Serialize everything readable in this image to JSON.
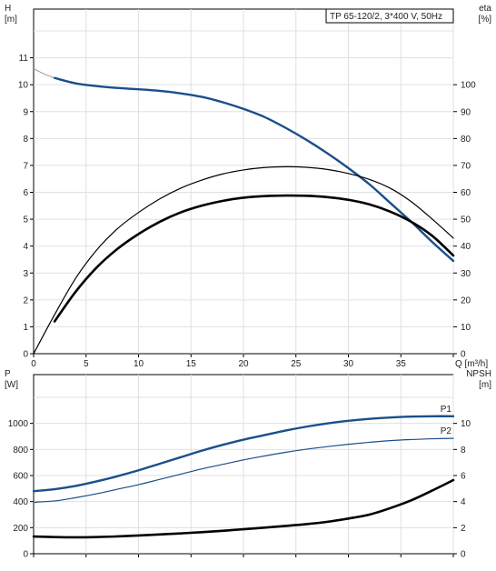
{
  "title_box": "TP 65-120/2, 3*400 V, 50Hz",
  "colors": {
    "blue": "#1a4f8a",
    "black": "#000000",
    "grid": "#e0e0e0"
  },
  "chart_data": [
    {
      "type": "line",
      "name": "top-chart",
      "title": "TP 65-120/2, 3*400 V, 50Hz",
      "xlabel": "Q [m³/h]",
      "xlim": [
        0,
        40
      ],
      "x_ticks": [
        0,
        5,
        10,
        15,
        20,
        25,
        30,
        35
      ],
      "left_axis": {
        "label_line1": "H",
        "label_line2": "[m]",
        "lim": [
          0,
          12
        ],
        "ticks": [
          0,
          1,
          2,
          3,
          4,
          5,
          6,
          7,
          8,
          9,
          10,
          11
        ]
      },
      "right_axis": {
        "label_line1": "eta",
        "label_line2": "[%]",
        "lim": [
          0,
          120
        ],
        "ticks": [
          0,
          10,
          20,
          30,
          40,
          50,
          60,
          70,
          80,
          90,
          100
        ]
      },
      "grid": true,
      "series": [
        {
          "axis": "left",
          "style": "extension",
          "color": "#888888",
          "x": [
            0,
            1,
            2
          ],
          "y": [
            10.6,
            10.4,
            10.25
          ]
        },
        {
          "axis": "left",
          "style": "blue-thick",
          "color": "#1a4f8a",
          "x": [
            2,
            4,
            6,
            8,
            10,
            12,
            14,
            16,
            18,
            20,
            22,
            24,
            26,
            28,
            30,
            32,
            34,
            36,
            38,
            40
          ],
          "y": [
            10.25,
            10.05,
            9.95,
            9.88,
            9.83,
            9.77,
            9.68,
            9.55,
            9.35,
            9.1,
            8.8,
            8.4,
            7.95,
            7.45,
            6.9,
            6.3,
            5.6,
            4.9,
            4.15,
            3.45
          ]
        },
        {
          "axis": "right",
          "style": "black-thin",
          "color": "#000000",
          "x": [
            0,
            2,
            4,
            6,
            8,
            10,
            12,
            14,
            16,
            18,
            20,
            22,
            24,
            26,
            28,
            30,
            32,
            34,
            36,
            38,
            40
          ],
          "y": [
            0,
            14.5,
            28,
            38.5,
            46.5,
            52.5,
            57.5,
            61.5,
            64.5,
            66.8,
            68.3,
            69.2,
            69.5,
            69.3,
            68.5,
            67,
            64.8,
            61.5,
            56.5,
            50,
            43
          ]
        },
        {
          "axis": "right",
          "style": "black-thick",
          "color": "#000000",
          "x": [
            2,
            4,
            6,
            8,
            10,
            12,
            14,
            16,
            18,
            20,
            22,
            24,
            26,
            28,
            30,
            32,
            34,
            36,
            38,
            40
          ],
          "y": [
            12,
            23,
            32,
            39,
            44.5,
            49,
            52.5,
            55,
            56.8,
            58,
            58.6,
            58.8,
            58.7,
            58.2,
            57.2,
            55.5,
            52.8,
            49,
            43.8,
            36.5
          ]
        }
      ]
    },
    {
      "type": "line",
      "name": "bottom-chart",
      "xlim": [
        0,
        40
      ],
      "x_ticks": [
        0,
        5,
        10,
        15,
        20,
        25,
        30,
        35
      ],
      "left_axis": {
        "label_line1": "P",
        "label_line2": "[W]",
        "lim": [
          0,
          1200
        ],
        "ticks": [
          0,
          200,
          400,
          600,
          800,
          1000
        ]
      },
      "right_axis": {
        "label_line1": "NPSH",
        "label_line2": "[m]",
        "lim": [
          0,
          12
        ],
        "ticks": [
          0,
          2,
          4,
          6,
          8,
          10
        ]
      },
      "grid": true,
      "series": [
        {
          "name": "P1",
          "axis": "left",
          "style": "blue-thick",
          "color": "#1a4f8a",
          "x": [
            0,
            2,
            4,
            6,
            8,
            10,
            12,
            14,
            16,
            18,
            20,
            22,
            24,
            26,
            28,
            30,
            32,
            34,
            36,
            38,
            40
          ],
          "y": [
            480,
            495,
            520,
            555,
            595,
            640,
            690,
            740,
            790,
            835,
            875,
            910,
            945,
            975,
            1000,
            1020,
            1035,
            1045,
            1052,
            1055,
            1055
          ]
        },
        {
          "name": "P2",
          "axis": "left",
          "style": "blue-thin",
          "color": "#1a4f8a",
          "x": [
            0,
            2,
            4,
            6,
            8,
            10,
            12,
            14,
            16,
            18,
            20,
            22,
            24,
            26,
            28,
            30,
            32,
            34,
            36,
            38,
            40
          ],
          "y": [
            395,
            405,
            430,
            460,
            495,
            530,
            570,
            610,
            650,
            685,
            720,
            750,
            778,
            802,
            822,
            840,
            855,
            868,
            876,
            882,
            885
          ]
        },
        {
          "axis": "right",
          "style": "black-thick",
          "color": "#000000",
          "x": [
            0,
            2,
            4,
            6,
            8,
            10,
            12,
            14,
            16,
            18,
            20,
            22,
            24,
            26,
            28,
            30,
            32,
            34,
            36,
            38,
            40
          ],
          "y": [
            1.32,
            1.28,
            1.26,
            1.28,
            1.33,
            1.4,
            1.48,
            1.56,
            1.65,
            1.76,
            1.88,
            2.0,
            2.13,
            2.27,
            2.45,
            2.7,
            3.0,
            3.5,
            4.1,
            4.85,
            5.65
          ]
        }
      ]
    }
  ]
}
